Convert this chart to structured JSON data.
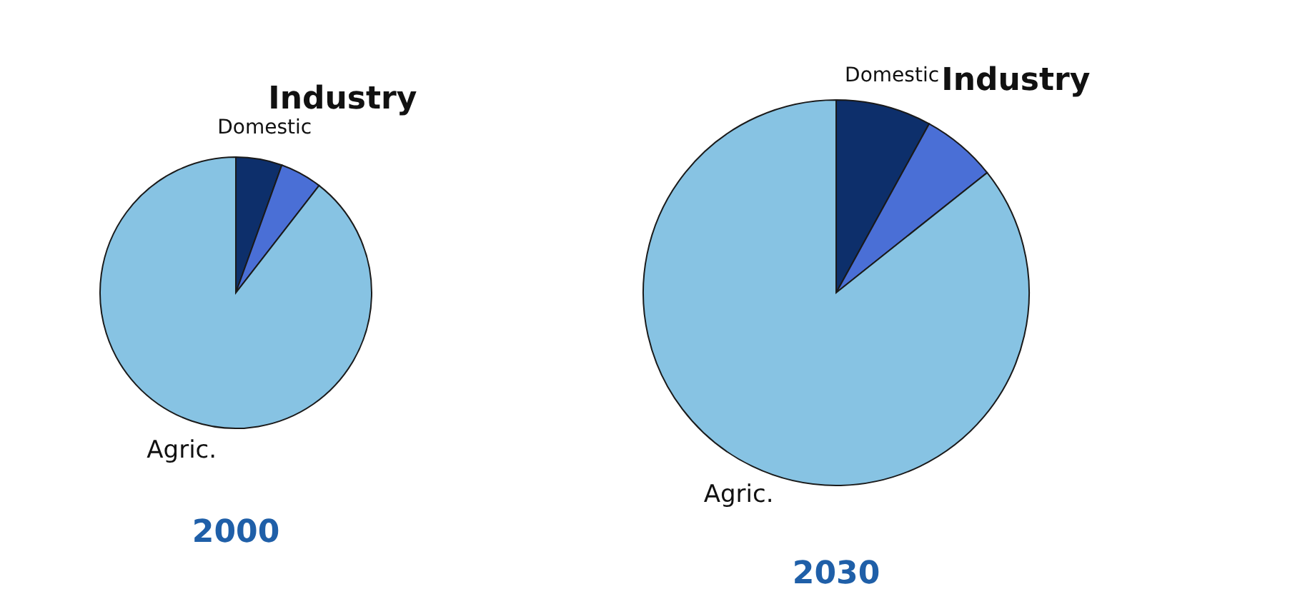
{
  "chart_data": [
    {
      "type": "pie",
      "title": "2000",
      "categories": [
        "Domestic",
        "Industry",
        "Agric."
      ],
      "values": [
        5.5,
        5,
        89.5
      ],
      "colors": [
        "#0d2f6b",
        "#4a6fd6",
        "#87c3e3"
      ]
    },
    {
      "type": "pie",
      "title": "2030",
      "categories": [
        "Domestic",
        "Industry",
        "Agric."
      ],
      "values": [
        8,
        6.3,
        85.7
      ],
      "colors": [
        "#0d2f6b",
        "#4a6fd6",
        "#87c3e3"
      ]
    }
  ]
}
